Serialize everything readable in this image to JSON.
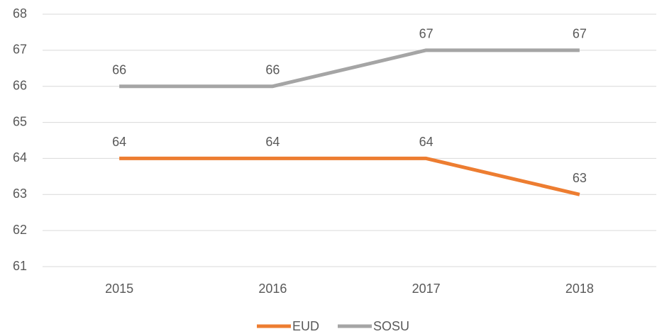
{
  "chart_data": {
    "type": "line",
    "categories": [
      "2015",
      "2016",
      "2017",
      "2018"
    ],
    "series": [
      {
        "name": "EUD",
        "color": "#ed7d31",
        "values": [
          64,
          64,
          64,
          63
        ]
      },
      {
        "name": "SOSU",
        "color": "#a5a5a5",
        "values": [
          66,
          66,
          67,
          67
        ]
      }
    ],
    "ylim": [
      61,
      68
    ],
    "yticks": [
      61,
      62,
      63,
      64,
      65,
      66,
      67,
      68
    ],
    "grid": true,
    "legend": "bottom"
  }
}
